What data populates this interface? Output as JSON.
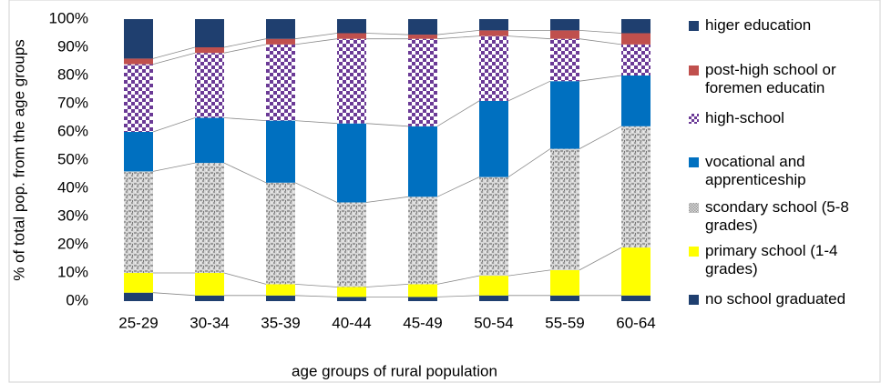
{
  "chart_data": {
    "type": "stacked_bar",
    "y_label": "% of total pop. from the age groups",
    "x_label": "age groups of rural population",
    "categories": [
      "25-29",
      "30-34",
      "35-39",
      "40-44",
      "45-49",
      "50-54",
      "55-59",
      "60-64"
    ],
    "ylim": [
      0,
      100
    ],
    "yticks": [
      {
        "value": 0,
        "label": "0%"
      },
      {
        "value": 10,
        "label": "10%"
      },
      {
        "value": 20,
        "label": "20%"
      },
      {
        "value": 30,
        "label": "30%"
      },
      {
        "value": 40,
        "label": "40%"
      },
      {
        "value": 50,
        "label": "50%"
      },
      {
        "value": 60,
        "label": "60%"
      },
      {
        "value": 70,
        "label": "70%"
      },
      {
        "value": 80,
        "label": "80%"
      },
      {
        "value": 90,
        "label": "90%"
      },
      {
        "value": 100,
        "label": "100%"
      }
    ],
    "series_lines": true,
    "series": [
      {
        "name": "no school graduated",
        "color": "#1f3f6f",
        "values": [
          3,
          2,
          2,
          1.5,
          1.5,
          2,
          2,
          2
        ]
      },
      {
        "name": "primary school (1-4 grades)",
        "color": "#ffff00",
        "values": [
          7,
          8,
          4,
          3.5,
          4.5,
          7,
          9,
          17
        ]
      },
      {
        "name": "scondary school (5-8 grades)",
        "color": "#9a9a9a",
        "pattern": "texture",
        "values": [
          36,
          39,
          36,
          30,
          31,
          35,
          43,
          43
        ]
      },
      {
        "name": "vocational and apprenticeship",
        "color": "#0070c0",
        "values": [
          14,
          16,
          22,
          28,
          25,
          27,
          24,
          18
        ]
      },
      {
        "name": "high-school",
        "color": "#6b3a96",
        "pattern": "checker",
        "values": [
          24,
          23,
          27,
          30,
          31,
          23,
          15,
          11
        ]
      },
      {
        "name": "post-high school or foremen educatin",
        "color": "#c0504d",
        "values": [
          2,
          2,
          2,
          2,
          1.5,
          2,
          3,
          4
        ]
      },
      {
        "name": "higer education",
        "color": "#1f3f6f",
        "values": [
          14,
          10,
          7,
          5,
          5.5,
          4,
          4,
          5
        ]
      }
    ]
  }
}
